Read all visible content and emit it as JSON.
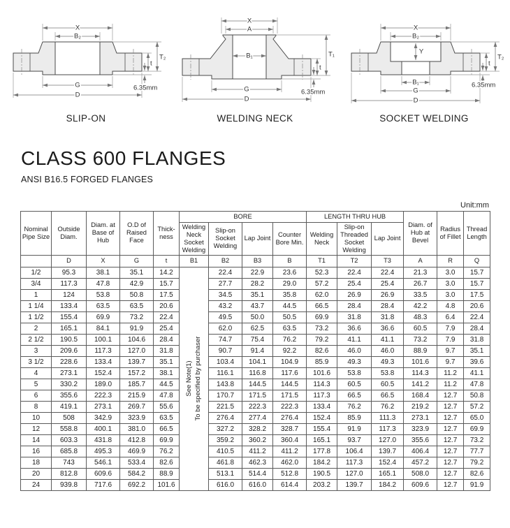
{
  "page": {
    "title": "CLASS 600 FLANGES",
    "subtitle": "ANSI B16.5 FORGED FLANGES"
  },
  "diagrams": {
    "slip_on": {
      "caption": "SLIP-ON",
      "dims": {
        "x": "X",
        "b2": "B₂",
        "g": "G",
        "d": "D",
        "t": "t",
        "t2": "T₂",
        "rf": "6.35mm"
      }
    },
    "welding_neck": {
      "caption": "WELDING NECK",
      "dims": {
        "x": "X",
        "a": "A",
        "b1": "B₁",
        "g": "G",
        "d": "D",
        "t": "t",
        "t1": "T₁",
        "rf": "6.35mm"
      }
    },
    "socket_welding": {
      "caption": "SOCKET WELDING",
      "dims": {
        "x": "X",
        "b2": "B₂",
        "y": "Y",
        "b1": "B₁",
        "g": "G",
        "d": "D",
        "t": "t",
        "t2": "T₂",
        "rf": "6.35mm"
      }
    }
  },
  "table": {
    "unit": "Unit:mm",
    "group_headers": {
      "bore": "BORE",
      "length_thru_hub": "LENGTH THRU HUB"
    },
    "columns": [
      {
        "label": "Nominal Pipe Size",
        "symbol": ""
      },
      {
        "label": "Outside Diam.",
        "symbol": "D"
      },
      {
        "label": "Diam. at Base of Hub",
        "symbol": "X"
      },
      {
        "label": "O.D of Raised Face",
        "symbol": "G"
      },
      {
        "label": "Thick-ness",
        "symbol": "t"
      },
      {
        "label": "Welding Neck Socket Welding",
        "symbol": "B1"
      },
      {
        "label": "Slip-on Socket Welding",
        "symbol": "B2"
      },
      {
        "label": "Lap Joint",
        "symbol": "B3"
      },
      {
        "label": "Counter Bore Min.",
        "symbol": "B"
      },
      {
        "label": "Welding Neck",
        "symbol": "T1"
      },
      {
        "label": "Slip-on Threaded Socket Welding",
        "symbol": "T2"
      },
      {
        "label": "Lap Joint",
        "symbol": "T3"
      },
      {
        "label": "Diam. of Hub at Bevel",
        "symbol": "A"
      },
      {
        "label": "Radius of Fillet",
        "symbol": "R"
      },
      {
        "label": "Thread Length",
        "symbol": "Q"
      }
    ],
    "b1_note": {
      "line1": "See Note(1)",
      "line2": "To be specified by purchaser"
    },
    "rows": [
      [
        "1/2",
        "95.3",
        "38.1",
        "35.1",
        "14.2",
        "22.4",
        "22.9",
        "23.6",
        "52.3",
        "22.4",
        "22.4",
        "21.3",
        "3.0",
        "15.7"
      ],
      [
        "3/4",
        "117.3",
        "47.8",
        "42.9",
        "15.7",
        "27.7",
        "28.2",
        "29.0",
        "57.2",
        "25.4",
        "25.4",
        "26.7",
        "3.0",
        "15.7"
      ],
      [
        "1",
        "124",
        "53.8",
        "50.8",
        "17.5",
        "34.5",
        "35.1",
        "35.8",
        "62.0",
        "26.9",
        "26.9",
        "33.5",
        "3.0",
        "17.5"
      ],
      [
        "1 1/4",
        "133.4",
        "63.5",
        "63.5",
        "20.6",
        "43.2",
        "43.7",
        "44.5",
        "66.5",
        "28.4",
        "28.4",
        "42.2",
        "4.8",
        "20.6"
      ],
      [
        "1 1/2",
        "155.4",
        "69.9",
        "73.2",
        "22.4",
        "49.5",
        "50.0",
        "50.5",
        "69.9",
        "31.8",
        "31.8",
        "48.3",
        "6.4",
        "22.4"
      ],
      [
        "2",
        "165.1",
        "84.1",
        "91.9",
        "25.4",
        "62.0",
        "62.5",
        "63.5",
        "73.2",
        "36.6",
        "36.6",
        "60.5",
        "7.9",
        "28.4"
      ],
      [
        "2 1/2",
        "190.5",
        "100.1",
        "104.6",
        "28.4",
        "74.7",
        "75.4",
        "76.2",
        "79.2",
        "41.1",
        "41.1",
        "73.2",
        "7.9",
        "31.8"
      ],
      [
        "3",
        "209.6",
        "117.3",
        "127.0",
        "31.8",
        "90.7",
        "91.4",
        "92.2",
        "82.6",
        "46.0",
        "46.0",
        "88.9",
        "9.7",
        "35.1"
      ],
      [
        "3 1/2",
        "228.6",
        "133.4",
        "139.7",
        "35.1",
        "103.4",
        "104.1",
        "104.9",
        "85.9",
        "49.3",
        "49.3",
        "101.6",
        "9.7",
        "39.6"
      ],
      [
        "4",
        "273.1",
        "152.4",
        "157.2",
        "38.1",
        "116.1",
        "116.8",
        "117.6",
        "101.6",
        "53.8",
        "53.8",
        "114.3",
        "11.2",
        "41.1"
      ],
      [
        "5",
        "330.2",
        "189.0",
        "185.7",
        "44.5",
        "143.8",
        "144.5",
        "144.5",
        "114.3",
        "60.5",
        "60.5",
        "141.2",
        "11.2",
        "47.8"
      ],
      [
        "6",
        "355.6",
        "222.3",
        "215.9",
        "47.8",
        "170.7",
        "171.5",
        "171.5",
        "117.3",
        "66.5",
        "66.5",
        "168.4",
        "12.7",
        "50.8"
      ],
      [
        "8",
        "419.1",
        "273.1",
        "269.7",
        "55.6",
        "221.5",
        "222.3",
        "222.3",
        "133.4",
        "76.2",
        "76.2",
        "219.2",
        "12.7",
        "57.2"
      ],
      [
        "10",
        "508",
        "342.9",
        "323.9",
        "63.5",
        "276.4",
        "277.4",
        "276.4",
        "152.4",
        "85.9",
        "111.3",
        "273.1",
        "12.7",
        "65.0"
      ],
      [
        "12",
        "558.8",
        "400.1",
        "381.0",
        "66.5",
        "327.2",
        "328.2",
        "328.7",
        "155.4",
        "91.9",
        "117.3",
        "323.9",
        "12.7",
        "69.9"
      ],
      [
        "14",
        "603.3",
        "431.8",
        "412.8",
        "69.9",
        "359.2",
        "360.2",
        "360.4",
        "165.1",
        "93.7",
        "127.0",
        "355.6",
        "12.7",
        "73.2"
      ],
      [
        "16",
        "685.8",
        "495.3",
        "469.9",
        "76.2",
        "410.5",
        "411.2",
        "411.2",
        "177.8",
        "106.4",
        "139.7",
        "406.4",
        "12.7",
        "77.7"
      ],
      [
        "18",
        "743",
        "546.1",
        "533.4",
        "82.6",
        "461.8",
        "462.3",
        "462.0",
        "184.2",
        "117.3",
        "152.4",
        "457.2",
        "12.7",
        "79.2"
      ],
      [
        "20",
        "812.8",
        "609.6",
        "584.2",
        "88.9",
        "513.1",
        "514.4",
        "512.8",
        "190.5",
        "127.0",
        "165.1",
        "508.0",
        "12.7",
        "82.6"
      ],
      [
        "24",
        "939.8",
        "717.6",
        "692.2",
        "101.6",
        "616.0",
        "616.0",
        "614.4",
        "203.2",
        "139.7",
        "184.2",
        "609.6",
        "12.7",
        "91.9"
      ]
    ]
  }
}
